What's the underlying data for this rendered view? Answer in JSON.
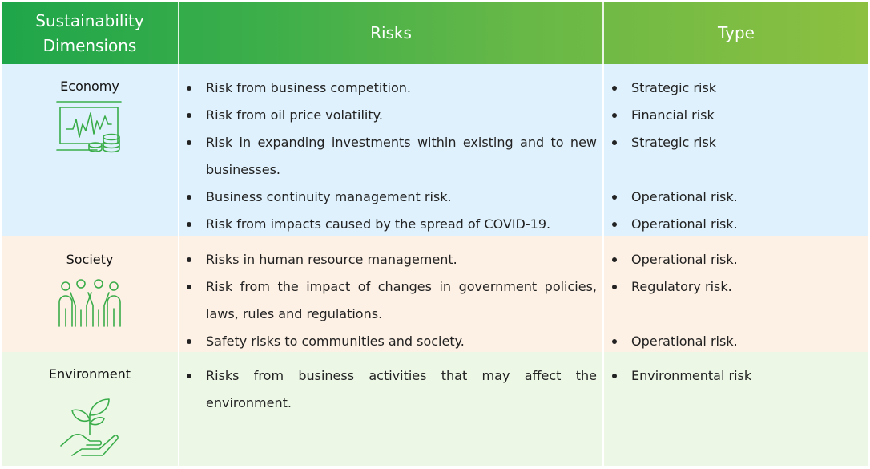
{
  "header": {
    "dimensions": "Sustainability\nDimensions",
    "risks": "Risks",
    "type": "Type"
  },
  "colors": {
    "header_start": "#1fa64a",
    "header_end": "#8cc040",
    "economy_bg": "#dff1fc",
    "society_bg": "#fdf0e4",
    "environment_bg": "#ecf7e6",
    "icon_green": "#3aad4a"
  },
  "rows": [
    {
      "dimension": "Economy",
      "icon": "economy-chart-coins-icon",
      "risks": [
        "Risk from business competition.",
        "Risk from oil price volatility.",
        "Risk in expanding investments within existing and to new businesses.",
        "Business continuity management risk.",
        "Risk from impacts caused by the spread of COVID-19."
      ],
      "types": [
        "Strategic risk",
        "Financial risk",
        "Strategic risk",
        "Operational risk.",
        "Operational risk."
      ]
    },
    {
      "dimension": "Society",
      "icon": "society-people-icon",
      "risks": [
        "Risks in human resource management.",
        "Risk from the impact of changes in government policies, laws, rules and regulations.",
        "Safety risks to communities and society."
      ],
      "types": [
        "Operational risk.",
        "Regulatory risk.",
        "Operational risk."
      ]
    },
    {
      "dimension": "Environment",
      "icon": "environment-plant-hand-icon",
      "risks": [
        "Risks from business activities that may affect the environment."
      ],
      "types": [
        "Environmental risk"
      ]
    }
  ]
}
